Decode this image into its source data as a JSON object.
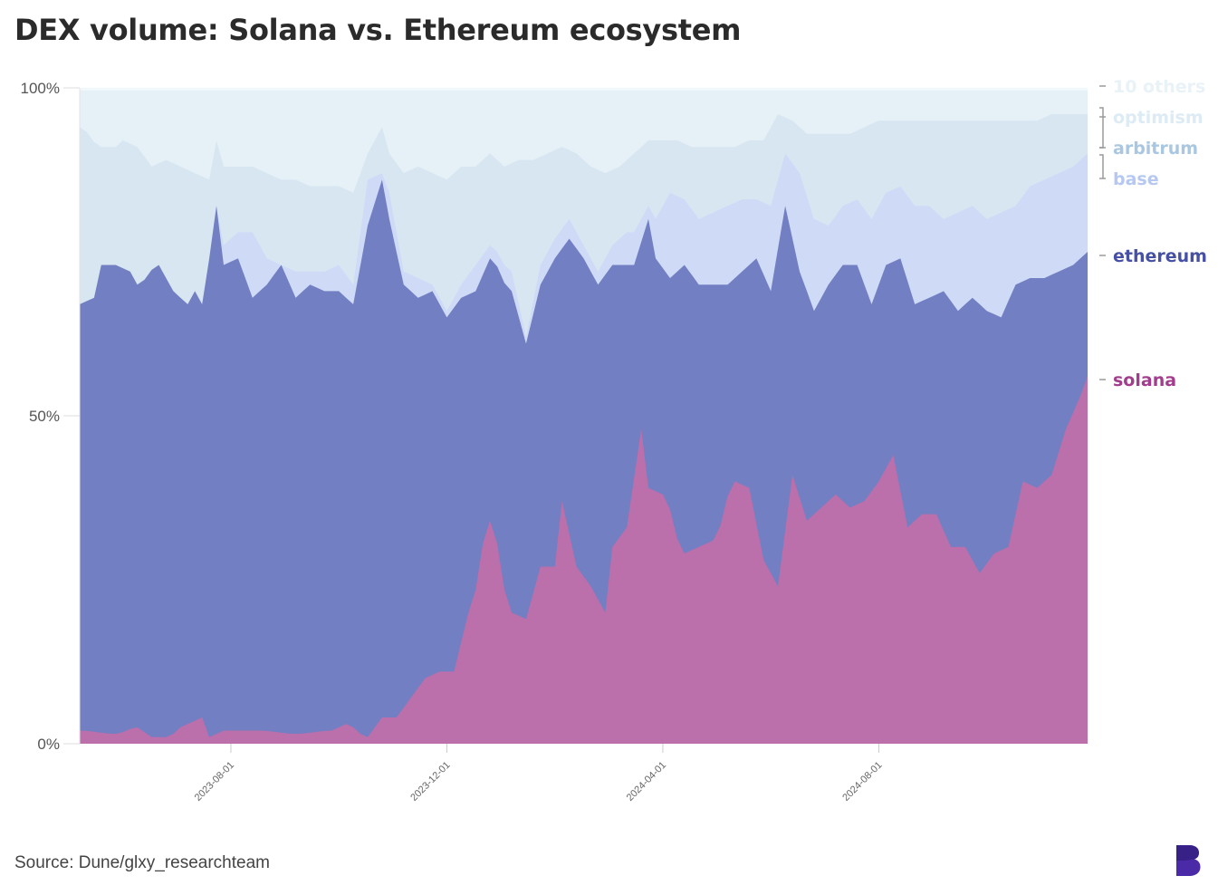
{
  "title": "DEX volume: Solana vs. Ethereum ecosystem",
  "source": "Source: Dune/glxy_researchteam",
  "logo": {
    "icon": "bloomberg-b-logo-icon",
    "color": "#4b2aa8"
  },
  "chart_data": {
    "type": "area",
    "stacked": "percent",
    "y_ticks": [
      "0%",
      "50%",
      "100%"
    ],
    "y_tick_values": [
      0,
      50,
      100
    ],
    "ylim": [
      0,
      100
    ],
    "x_ticks": [
      "2023-08-01",
      "2023-12-01",
      "2024-04-01",
      "2024-08-01"
    ],
    "x_tick_indices": [
      21,
      51,
      81,
      111
    ],
    "num_points": 134,
    "grid": false,
    "series": [
      {
        "name": "solana",
        "color": "#bb6fab",
        "label_color": "#a13d8c",
        "anchors": [
          [
            0,
            2
          ],
          [
            5,
            1.5
          ],
          [
            8,
            2.5
          ],
          [
            10,
            1
          ],
          [
            12,
            1
          ],
          [
            15,
            3
          ],
          [
            17,
            4
          ],
          [
            18,
            1
          ],
          [
            20,
            2
          ],
          [
            25,
            2
          ],
          [
            30,
            1.5
          ],
          [
            35,
            2
          ],
          [
            37,
            3
          ],
          [
            40,
            1
          ],
          [
            42,
            4
          ],
          [
            44,
            4
          ],
          [
            46,
            7
          ],
          [
            48,
            10
          ],
          [
            50,
            11
          ],
          [
            52,
            11
          ],
          [
            54,
            20
          ],
          [
            57,
            34
          ],
          [
            60,
            20
          ],
          [
            62,
            19
          ],
          [
            64,
            27
          ],
          [
            66,
            27
          ],
          [
            67,
            37
          ],
          [
            69,
            27
          ],
          [
            71,
            24
          ],
          [
            73,
            20
          ],
          [
            74,
            30
          ],
          [
            76,
            33
          ],
          [
            78,
            48
          ],
          [
            79,
            39
          ],
          [
            81,
            38
          ],
          [
            84,
            29
          ],
          [
            86,
            30
          ],
          [
            88,
            31
          ],
          [
            91,
            40
          ],
          [
            93,
            39
          ],
          [
            95,
            28
          ],
          [
            97,
            24
          ],
          [
            99,
            41
          ],
          [
            101,
            34
          ],
          [
            103,
            36
          ],
          [
            105,
            38
          ],
          [
            107,
            36
          ],
          [
            109,
            37
          ],
          [
            111,
            40
          ],
          [
            113,
            44
          ],
          [
            115,
            33
          ],
          [
            117,
            35
          ],
          [
            119,
            35
          ],
          [
            121,
            30
          ],
          [
            123,
            30
          ],
          [
            125,
            26
          ],
          [
            127,
            29
          ],
          [
            129,
            30
          ],
          [
            131,
            40
          ],
          [
            133,
            39
          ],
          [
            135,
            41
          ],
          [
            137,
            48
          ],
          [
            139,
            53
          ],
          [
            140,
            56
          ]
        ]
      },
      {
        "name": "ethereum",
        "color": "#727fc2",
        "label_color": "#4650a4",
        "anchors": [
          [
            0,
            67
          ],
          [
            2,
            68
          ],
          [
            3,
            73
          ],
          [
            5,
            73
          ],
          [
            7,
            72
          ],
          [
            8,
            70
          ],
          [
            11,
            73
          ],
          [
            13,
            69
          ],
          [
            15,
            67
          ],
          [
            16,
            69
          ],
          [
            17,
            67
          ],
          [
            18,
            74
          ],
          [
            19,
            82
          ],
          [
            20,
            73
          ],
          [
            22,
            74
          ],
          [
            24,
            68
          ],
          [
            26,
            70
          ],
          [
            28,
            73
          ],
          [
            30,
            68
          ],
          [
            32,
            70
          ],
          [
            34,
            69
          ],
          [
            36,
            69
          ],
          [
            38,
            67
          ],
          [
            40,
            79
          ],
          [
            42,
            86
          ],
          [
            43,
            80
          ],
          [
            45,
            70
          ],
          [
            47,
            68
          ],
          [
            49,
            69
          ],
          [
            51,
            65
          ],
          [
            53,
            68
          ],
          [
            55,
            69
          ],
          [
            57,
            74
          ],
          [
            60,
            69
          ],
          [
            62,
            61
          ],
          [
            64,
            70
          ],
          [
            66,
            74
          ],
          [
            68,
            77
          ],
          [
            70,
            74
          ],
          [
            72,
            70
          ],
          [
            74,
            73
          ],
          [
            76,
            73
          ],
          [
            77,
            73
          ],
          [
            79,
            80
          ],
          [
            80,
            74
          ],
          [
            82,
            71
          ],
          [
            84,
            73
          ],
          [
            86,
            70
          ],
          [
            88,
            70
          ],
          [
            90,
            70
          ],
          [
            92,
            72
          ],
          [
            94,
            74
          ],
          [
            96,
            69
          ],
          [
            98,
            82
          ],
          [
            100,
            72
          ],
          [
            102,
            66
          ],
          [
            104,
            70
          ],
          [
            106,
            73
          ],
          [
            108,
            73
          ],
          [
            110,
            67
          ],
          [
            112,
            73
          ],
          [
            114,
            74
          ],
          [
            116,
            67
          ],
          [
            118,
            68
          ],
          [
            120,
            69
          ],
          [
            122,
            66
          ],
          [
            124,
            68
          ],
          [
            126,
            66
          ],
          [
            128,
            65
          ],
          [
            130,
            70
          ],
          [
            132,
            71
          ],
          [
            134,
            71
          ],
          [
            136,
            72
          ],
          [
            138,
            73
          ],
          [
            140,
            75
          ]
        ]
      },
      {
        "name": "base",
        "color": "#cfdaf7",
        "label_color": "#b6c8f2",
        "anchors": [
          [
            0,
            67
          ],
          [
            2,
            68
          ],
          [
            3,
            73
          ],
          [
            5,
            73
          ],
          [
            7,
            72
          ],
          [
            8,
            70
          ],
          [
            11,
            73
          ],
          [
            13,
            69
          ],
          [
            15,
            67
          ],
          [
            16,
            69
          ],
          [
            17,
            67
          ],
          [
            18,
            74
          ],
          [
            19,
            82
          ],
          [
            20,
            76
          ],
          [
            22,
            78
          ],
          [
            24,
            78
          ],
          [
            26,
            74
          ],
          [
            28,
            73
          ],
          [
            30,
            72
          ],
          [
            32,
            72
          ],
          [
            34,
            72
          ],
          [
            36,
            73
          ],
          [
            38,
            70
          ],
          [
            40,
            86
          ],
          [
            42,
            87
          ],
          [
            43,
            84
          ],
          [
            45,
            72
          ],
          [
            47,
            71
          ],
          [
            49,
            70
          ],
          [
            51,
            66
          ],
          [
            53,
            70
          ],
          [
            55,
            73
          ],
          [
            57,
            76
          ],
          [
            60,
            72
          ],
          [
            62,
            62
          ],
          [
            64,
            73
          ],
          [
            66,
            77
          ],
          [
            68,
            80
          ],
          [
            70,
            76
          ],
          [
            72,
            72
          ],
          [
            74,
            76
          ],
          [
            76,
            78
          ],
          [
            77,
            78
          ],
          [
            79,
            82
          ],
          [
            80,
            80
          ],
          [
            82,
            84
          ],
          [
            84,
            83
          ],
          [
            86,
            80
          ],
          [
            88,
            81
          ],
          [
            90,
            82
          ],
          [
            92,
            83
          ],
          [
            94,
            83
          ],
          [
            96,
            82
          ],
          [
            98,
            90
          ],
          [
            100,
            87
          ],
          [
            102,
            80
          ],
          [
            104,
            79
          ],
          [
            106,
            82
          ],
          [
            108,
            83
          ],
          [
            110,
            80
          ],
          [
            112,
            84
          ],
          [
            114,
            85
          ],
          [
            116,
            82
          ],
          [
            118,
            82
          ],
          [
            120,
            80
          ],
          [
            122,
            81
          ],
          [
            124,
            82
          ],
          [
            126,
            80
          ],
          [
            128,
            81
          ],
          [
            130,
            82
          ],
          [
            132,
            85
          ],
          [
            134,
            86
          ],
          [
            136,
            87
          ],
          [
            138,
            88
          ],
          [
            140,
            90
          ]
        ]
      },
      {
        "name": "arbitrum",
        "color": "#d8e6f2",
        "label_color": "#a9c7e0",
        "anchors": [
          [
            0,
            94
          ],
          [
            3,
            91
          ],
          [
            5,
            91
          ],
          [
            6,
            92
          ],
          [
            8,
            91
          ],
          [
            10,
            88
          ],
          [
            12,
            89
          ],
          [
            14,
            88
          ],
          [
            16,
            87
          ],
          [
            18,
            86
          ],
          [
            19,
            92
          ],
          [
            20,
            88
          ],
          [
            22,
            88
          ],
          [
            24,
            88
          ],
          [
            26,
            87
          ],
          [
            28,
            86
          ],
          [
            30,
            86
          ],
          [
            32,
            85
          ],
          [
            34,
            85
          ],
          [
            36,
            85
          ],
          [
            38,
            84
          ],
          [
            40,
            90
          ],
          [
            42,
            94
          ],
          [
            43,
            90
          ],
          [
            45,
            87
          ],
          [
            47,
            88
          ],
          [
            49,
            87
          ],
          [
            51,
            86
          ],
          [
            53,
            88
          ],
          [
            55,
            88
          ],
          [
            57,
            90
          ],
          [
            59,
            88
          ],
          [
            61,
            89
          ],
          [
            63,
            89
          ],
          [
            65,
            90
          ],
          [
            67,
            91
          ],
          [
            69,
            90
          ],
          [
            71,
            88
          ],
          [
            73,
            87
          ],
          [
            75,
            88
          ],
          [
            77,
            90
          ],
          [
            79,
            92
          ],
          [
            81,
            92
          ],
          [
            83,
            92
          ],
          [
            85,
            91
          ],
          [
            87,
            91
          ],
          [
            89,
            91
          ],
          [
            91,
            91
          ],
          [
            93,
            92
          ],
          [
            95,
            92
          ],
          [
            97,
            96
          ],
          [
            99,
            95
          ],
          [
            101,
            93
          ],
          [
            103,
            93
          ],
          [
            105,
            93
          ],
          [
            107,
            93
          ],
          [
            109,
            94
          ],
          [
            111,
            95
          ],
          [
            113,
            95
          ],
          [
            115,
            95
          ],
          [
            117,
            95
          ],
          [
            119,
            95
          ],
          [
            121,
            95
          ],
          [
            123,
            95
          ],
          [
            125,
            95
          ],
          [
            127,
            95
          ],
          [
            129,
            95
          ],
          [
            131,
            95
          ],
          [
            133,
            95
          ],
          [
            135,
            96
          ],
          [
            137,
            96
          ],
          [
            140,
            96
          ]
        ]
      },
      {
        "name": "optimism",
        "color": "#e6f0f7",
        "label_color": "#dcebf4",
        "anchors": [
          [
            0,
            99.6
          ],
          [
            140,
            99.6
          ]
        ]
      },
      {
        "name": "10 others",
        "color": "#f1f8fb",
        "label_color": "#e8f2f7",
        "anchors": [
          [
            0,
            100
          ],
          [
            140,
            100
          ]
        ]
      }
    ],
    "legend": [
      "10 others",
      "optimism",
      "arbitrum",
      "base",
      "ethereum",
      "solana"
    ],
    "legend_placement": "right"
  }
}
